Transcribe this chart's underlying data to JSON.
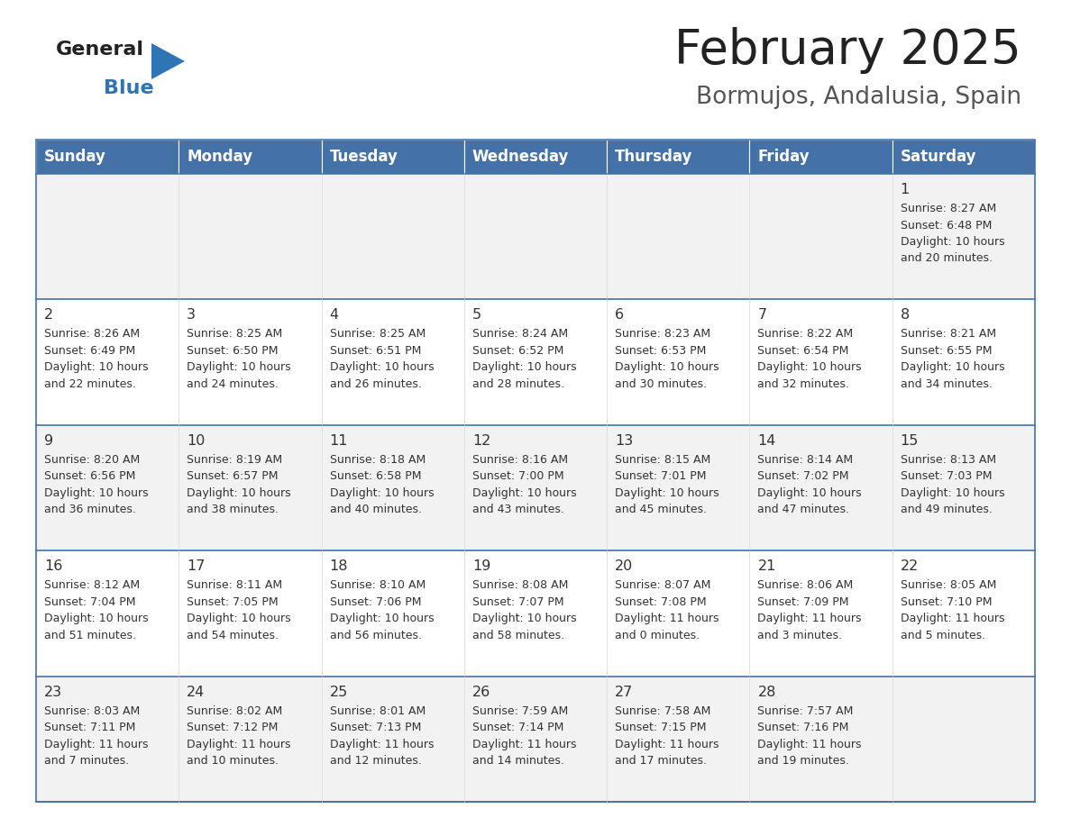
{
  "title": "February 2025",
  "subtitle": "Bormujos, Andalusia, Spain",
  "days_of_week": [
    "Sunday",
    "Monday",
    "Tuesday",
    "Wednesday",
    "Thursday",
    "Friday",
    "Saturday"
  ],
  "header_bg": "#4472A8",
  "header_text": "#FFFFFF",
  "row_bg_odd": "#F2F2F2",
  "row_bg_even": "#FFFFFF",
  "separator_color": "#4472A8",
  "text_color": "#333333",
  "title_color": "#222222",
  "subtitle_color": "#555555",
  "logo_general_color": "#222222",
  "logo_blue_color": "#2E75B6",
  "calendar_data": [
    [
      null,
      null,
      null,
      null,
      null,
      null,
      {
        "day": 1,
        "sunrise": "8:27 AM",
        "sunset": "6:48 PM",
        "daylight": "10 hours\nand 20 minutes."
      }
    ],
    [
      {
        "day": 2,
        "sunrise": "8:26 AM",
        "sunset": "6:49 PM",
        "daylight": "10 hours\nand 22 minutes."
      },
      {
        "day": 3,
        "sunrise": "8:25 AM",
        "sunset": "6:50 PM",
        "daylight": "10 hours\nand 24 minutes."
      },
      {
        "day": 4,
        "sunrise": "8:25 AM",
        "sunset": "6:51 PM",
        "daylight": "10 hours\nand 26 minutes."
      },
      {
        "day": 5,
        "sunrise": "8:24 AM",
        "sunset": "6:52 PM",
        "daylight": "10 hours\nand 28 minutes."
      },
      {
        "day": 6,
        "sunrise": "8:23 AM",
        "sunset": "6:53 PM",
        "daylight": "10 hours\nand 30 minutes."
      },
      {
        "day": 7,
        "sunrise": "8:22 AM",
        "sunset": "6:54 PM",
        "daylight": "10 hours\nand 32 minutes."
      },
      {
        "day": 8,
        "sunrise": "8:21 AM",
        "sunset": "6:55 PM",
        "daylight": "10 hours\nand 34 minutes."
      }
    ],
    [
      {
        "day": 9,
        "sunrise": "8:20 AM",
        "sunset": "6:56 PM",
        "daylight": "10 hours\nand 36 minutes."
      },
      {
        "day": 10,
        "sunrise": "8:19 AM",
        "sunset": "6:57 PM",
        "daylight": "10 hours\nand 38 minutes."
      },
      {
        "day": 11,
        "sunrise": "8:18 AM",
        "sunset": "6:58 PM",
        "daylight": "10 hours\nand 40 minutes."
      },
      {
        "day": 12,
        "sunrise": "8:16 AM",
        "sunset": "7:00 PM",
        "daylight": "10 hours\nand 43 minutes."
      },
      {
        "day": 13,
        "sunrise": "8:15 AM",
        "sunset": "7:01 PM",
        "daylight": "10 hours\nand 45 minutes."
      },
      {
        "day": 14,
        "sunrise": "8:14 AM",
        "sunset": "7:02 PM",
        "daylight": "10 hours\nand 47 minutes."
      },
      {
        "day": 15,
        "sunrise": "8:13 AM",
        "sunset": "7:03 PM",
        "daylight": "10 hours\nand 49 minutes."
      }
    ],
    [
      {
        "day": 16,
        "sunrise": "8:12 AM",
        "sunset": "7:04 PM",
        "daylight": "10 hours\nand 51 minutes."
      },
      {
        "day": 17,
        "sunrise": "8:11 AM",
        "sunset": "7:05 PM",
        "daylight": "10 hours\nand 54 minutes."
      },
      {
        "day": 18,
        "sunrise": "8:10 AM",
        "sunset": "7:06 PM",
        "daylight": "10 hours\nand 56 minutes."
      },
      {
        "day": 19,
        "sunrise": "8:08 AM",
        "sunset": "7:07 PM",
        "daylight": "10 hours\nand 58 minutes."
      },
      {
        "day": 20,
        "sunrise": "8:07 AM",
        "sunset": "7:08 PM",
        "daylight": "11 hours\nand 0 minutes."
      },
      {
        "day": 21,
        "sunrise": "8:06 AM",
        "sunset": "7:09 PM",
        "daylight": "11 hours\nand 3 minutes."
      },
      {
        "day": 22,
        "sunrise": "8:05 AM",
        "sunset": "7:10 PM",
        "daylight": "11 hours\nand 5 minutes."
      }
    ],
    [
      {
        "day": 23,
        "sunrise": "8:03 AM",
        "sunset": "7:11 PM",
        "daylight": "11 hours\nand 7 minutes."
      },
      {
        "day": 24,
        "sunrise": "8:02 AM",
        "sunset": "7:12 PM",
        "daylight": "11 hours\nand 10 minutes."
      },
      {
        "day": 25,
        "sunrise": "8:01 AM",
        "sunset": "7:13 PM",
        "daylight": "11 hours\nand 12 minutes."
      },
      {
        "day": 26,
        "sunrise": "7:59 AM",
        "sunset": "7:14 PM",
        "daylight": "11 hours\nand 14 minutes."
      },
      {
        "day": 27,
        "sunrise": "7:58 AM",
        "sunset": "7:15 PM",
        "daylight": "11 hours\nand 17 minutes."
      },
      {
        "day": 28,
        "sunrise": "7:57 AM",
        "sunset": "7:16 PM",
        "daylight": "11 hours\nand 19 minutes."
      },
      null
    ]
  ]
}
